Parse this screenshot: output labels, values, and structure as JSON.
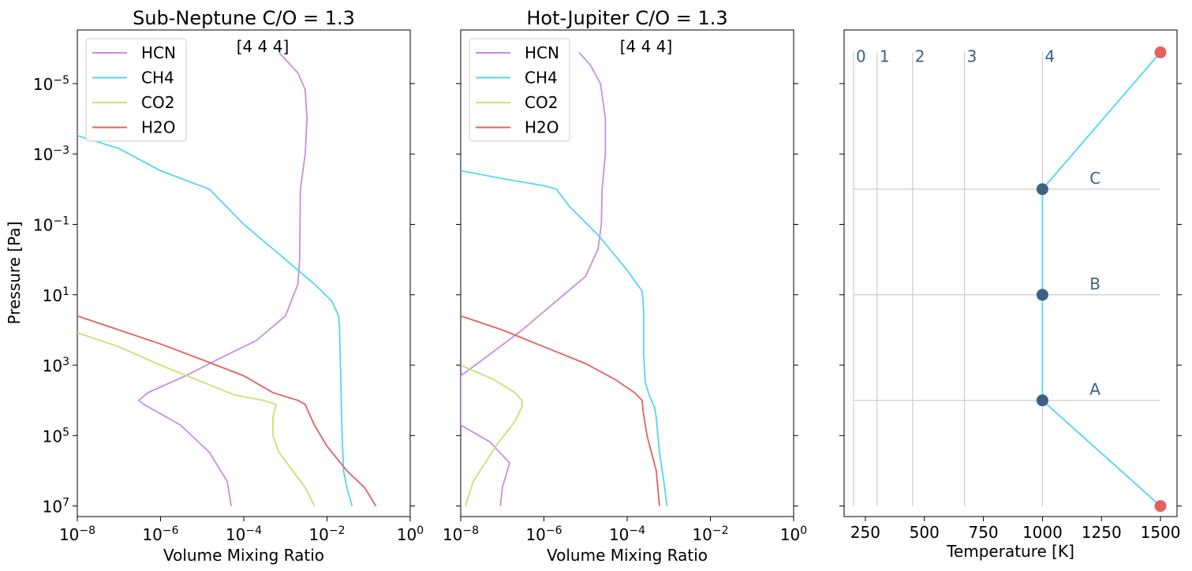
{
  "chart_data": [
    {
      "type": "line",
      "title": "Sub-Neptune C/O = 1.3",
      "annotation": "[4 4 4]",
      "xlabel": "Volume Mixing Ratio",
      "ylabel": "Pressure [Pa]",
      "xscale": "log",
      "yscale": "log",
      "xlim": [
        1e-08,
        1
      ],
      "ylim": [
        20000000.0,
        3e-07
      ],
      "y_inverted": true,
      "x_ticks": [
        1e-08,
        1e-06,
        0.0001,
        0.01,
        1
      ],
      "x_tick_labels": [
        {
          "b": "10",
          "e": "−8"
        },
        {
          "b": "10",
          "e": "−6"
        },
        {
          "b": "10",
          "e": "−4"
        },
        {
          "b": "10",
          "e": "−2"
        },
        {
          "b": "10",
          "e": "0"
        }
      ],
      "y_ticks": [
        1e-05,
        0.001,
        0.1,
        10,
        1000,
        100000.0,
        10000000.0
      ],
      "y_tick_labels": [
        {
          "b": "10",
          "e": "−5"
        },
        {
          "b": "10",
          "e": "−3"
        },
        {
          "b": "10",
          "e": "−1"
        },
        {
          "b": "10",
          "e": "1"
        },
        {
          "b": "10",
          "e": "3"
        },
        {
          "b": "10",
          "e": "5"
        },
        {
          "b": "10",
          "e": "7"
        }
      ],
      "legend": "top-left",
      "series": [
        {
          "name": "HCN",
          "color": "#c88ee0",
          "points": [
            [
              0.0007,
              1.3e-06
            ],
            [
              0.002,
              5e-06
            ],
            [
              0.003,
              1.5e-05
            ],
            [
              0.0033,
              0.0001
            ],
            [
              0.003,
              0.001
            ],
            [
              0.0023,
              0.01
            ],
            [
              0.0022,
              1
            ],
            [
              0.002,
              5
            ],
            [
              0.001,
              40
            ],
            [
              0.0002,
              200
            ],
            [
              3e-05,
              600
            ],
            [
              4e-06,
              2000
            ],
            [
              5e-07,
              6000
            ],
            [
              3e-07,
              10000.0
            ],
            [
              4e-07,
              13000.0
            ],
            [
              3e-06,
              50000.0
            ],
            [
              1.5e-05,
              300000.0
            ],
            [
              4e-05,
              2000000.0
            ],
            [
              5e-05,
              10000000.0
            ]
          ]
        },
        {
          "name": "CH4",
          "color": "#52d6f4",
          "points": [
            [
              1e-08,
              0.0003
            ],
            [
              1e-07,
              0.0007
            ],
            [
              1e-06,
              0.003
            ],
            [
              1.5e-05,
              0.01
            ],
            [
              0.0001,
              0.1
            ],
            [
              0.001,
              1
            ],
            [
              0.005,
              5
            ],
            [
              0.013,
              15
            ],
            [
              0.019,
              40
            ],
            [
              0.02,
              100
            ],
            [
              0.021,
              1000
            ],
            [
              0.022,
              10000.0
            ],
            [
              0.023,
              100000.0
            ],
            [
              0.025,
              1000000.0
            ],
            [
              0.03,
              3000000.0
            ],
            [
              0.04,
              10000000.0
            ]
          ]
        },
        {
          "name": "CO2",
          "color": "#c2e56f",
          "points": [
            [
              1e-08,
              120
            ],
            [
              1e-07,
              300
            ],
            [
              1e-06,
              1000
            ],
            [
              1e-05,
              3000
            ],
            [
              6e-05,
              7000
            ],
            [
              0.0003,
              10000.0
            ],
            [
              0.0006,
              13000.0
            ],
            [
              0.0005,
              30000.0
            ],
            [
              0.0005,
              100000.0
            ],
            [
              0.0007,
              300000.0
            ],
            [
              0.0015,
              1000000.0
            ],
            [
              0.003,
              3000000.0
            ],
            [
              0.005,
              10000000.0
            ]
          ]
        },
        {
          "name": "H2O",
          "color": "#e5605e",
          "points": [
            [
              1e-08,
              40
            ],
            [
              1e-07,
              100
            ],
            [
              1e-06,
              250
            ],
            [
              1e-05,
              700
            ],
            [
              0.0001,
              2000
            ],
            [
              0.0005,
              6000
            ],
            [
              0.002,
              10000.0
            ],
            [
              0.003,
              13000.0
            ],
            [
              0.0035,
              20000.0
            ],
            [
              0.005,
              50000.0
            ],
            [
              0.01,
              200000.0
            ],
            [
              0.03,
              1000000.0
            ],
            [
              0.08,
              3000000.0
            ],
            [
              0.15,
              10000000.0
            ]
          ]
        }
      ]
    },
    {
      "type": "line",
      "title": "Hot-Jupiter C/O = 1.3",
      "annotation": "[4 4 4]",
      "xlabel": "Volume Mixing Ratio",
      "ylabel": "",
      "xscale": "log",
      "yscale": "log",
      "xlim": [
        1e-08,
        1
      ],
      "ylim": [
        20000000.0,
        3e-07
      ],
      "y_inverted": true,
      "x_ticks": [
        1e-08,
        1e-06,
        0.0001,
        0.01,
        1
      ],
      "x_tick_labels": [
        {
          "b": "10",
          "e": "−8"
        },
        {
          "b": "10",
          "e": "−6"
        },
        {
          "b": "10",
          "e": "−4"
        },
        {
          "b": "10",
          "e": "−2"
        },
        {
          "b": "10",
          "e": "0"
        }
      ],
      "y_ticks": [
        1e-05,
        0.001,
        0.1,
        10,
        1000,
        100000.0,
        10000000.0
      ],
      "y_tick_labels": [],
      "legend": "top-left",
      "series": [
        {
          "name": "HCN",
          "color": "#c88ee0",
          "points": [
            [
              7e-06,
              1.3e-06
            ],
            [
              1.3e-05,
              3e-06
            ],
            [
              2.3e-05,
              1e-05
            ],
            [
              3e-05,
              0.0001
            ],
            [
              3e-05,
              0.001
            ],
            [
              2.5e-05,
              0.01
            ],
            [
              2.4e-05,
              0.1
            ],
            [
              2e-05,
              0.5
            ],
            [
              1e-05,
              3
            ],
            [
              2e-06,
              15
            ],
            [
              3e-07,
              100
            ],
            [
              4e-08,
              600
            ],
            [
              1e-08,
              2000
            ],
            [
              1e-08,
              50000.0
            ],
            [
              5e-08,
              150000.0
            ],
            [
              1.5e-07,
              600000.0
            ],
            [
              1e-07,
              3000000.0
            ],
            [
              9e-08,
              10000000.0
            ]
          ]
        },
        {
          "name": "CH4",
          "color": "#52d6f4",
          "points": [
            [
              1e-08,
              0.003
            ],
            [
              1e-07,
              0.005
            ],
            [
              1e-06,
              0.008
            ],
            [
              2e-06,
              0.01
            ],
            [
              4e-06,
              0.03
            ],
            [
              2e-05,
              0.2
            ],
            [
              0.0001,
              2
            ],
            [
              0.00023,
              8
            ],
            [
              0.00025,
              30
            ],
            [
              0.00025,
              500
            ],
            [
              0.00027,
              3000
            ],
            [
              0.00035,
              8000
            ],
            [
              0.00045,
              15000.0
            ],
            [
              0.0005,
              30000.0
            ],
            [
              0.0006,
              300000.0
            ],
            [
              0.0008,
              3000000.0
            ],
            [
              0.0009,
              10000000.0
            ]
          ]
        },
        {
          "name": "CO2",
          "color": "#c2e56f",
          "points": [
            [
              1e-08,
              1000
            ],
            [
              6e-08,
              2500
            ],
            [
              2e-07,
              6000
            ],
            [
              3e-07,
              10000.0
            ],
            [
              3e-07,
              15000.0
            ],
            [
              2e-07,
              40000.0
            ],
            [
              7e-08,
              200000.0
            ],
            [
              2e-08,
              2000000.0
            ],
            [
              1.3e-08,
              10000000.0
            ]
          ]
        },
        {
          "name": "H2O",
          "color": "#e5605e",
          "points": [
            [
              1e-08,
              40
            ],
            [
              1e-07,
              100
            ],
            [
              1e-06,
              300
            ],
            [
              1e-05,
              900
            ],
            [
              5e-05,
              2500
            ],
            [
              0.00015,
              6000
            ],
            [
              0.00023,
              10000.0
            ],
            [
              0.00024,
              20000.0
            ],
            [
              0.0003,
              100000.0
            ],
            [
              0.0005,
              1000000.0
            ],
            [
              0.0006,
              10000000.0
            ]
          ]
        }
      ]
    },
    {
      "type": "line",
      "xlabel": "Temperature [K]",
      "xlim": [
        160,
        1570
      ],
      "x_ticks": [
        250,
        500,
        750,
        1000,
        1250,
        1500
      ],
      "x_tick_labels": [
        "250",
        "500",
        "750",
        "1000",
        "1250",
        "1500"
      ],
      "yscale": "log",
      "ylim": [
        20000000.0,
        3e-07
      ],
      "y_inverted": true,
      "y_ticks": [
        1e-05,
        0.001,
        0.1,
        10,
        1000,
        100000.0,
        10000000.0
      ],
      "vertical_lines": [
        {
          "label": "0",
          "x": 200
        },
        {
          "label": "1",
          "x": 300
        },
        {
          "label": "2",
          "x": 450
        },
        {
          "label": "3",
          "x": 670
        },
        {
          "label": "4",
          "x": 1000
        }
      ],
      "vertical_lines_y_range": [
        1.3e-06,
        10000000.0
      ],
      "horizontal_lines": [
        {
          "label": "C",
          "y": 0.01
        },
        {
          "label": "B",
          "y": 10
        },
        {
          "label": "A",
          "y": 10000.0
        }
      ],
      "horizontal_lines_x_range": [
        200,
        1500
      ],
      "profile": {
        "color": "#52d6f4",
        "points": [
          [
            1500,
            1.3e-06
          ],
          [
            1000,
            0.01
          ],
          [
            1000,
            10
          ],
          [
            1000,
            10000.0
          ],
          [
            1500,
            10000000.0
          ]
        ]
      },
      "knots": {
        "color": "#3b6184",
        "points": [
          [
            1000,
            0.01
          ],
          [
            1000,
            10
          ],
          [
            1000,
            10000.0
          ]
        ]
      },
      "ends": {
        "color": "#e5605e",
        "points": [
          [
            1500,
            1.3e-06
          ],
          [
            1500,
            10000000.0
          ]
        ]
      },
      "label_color": "#3b6184",
      "grid_color": "#cccccc"
    }
  ]
}
